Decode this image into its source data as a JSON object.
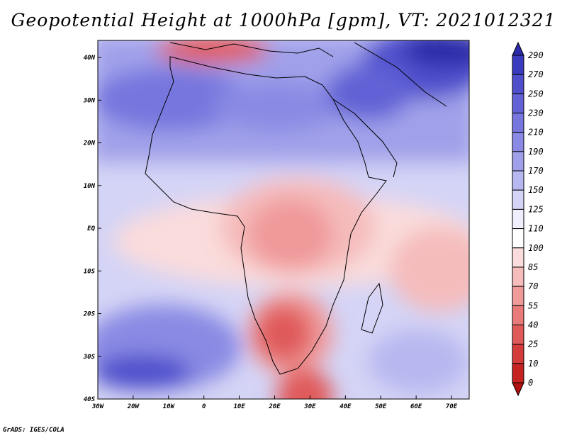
{
  "title": "Geopotential Height at 1000hPa [gpm], VT: 2021012321",
  "credit": "GrADS: IGES/COLA",
  "map": {
    "lat_labels": [
      "40N",
      "30N",
      "20N",
      "10N",
      "EQ",
      "10S",
      "20S",
      "30S",
      "40S"
    ],
    "lon_labels": [
      "30W",
      "20W",
      "10W",
      "0",
      "10E",
      "20E",
      "30E",
      "40E",
      "50E",
      "60E",
      "70E"
    ],
    "lon_range": [
      -30,
      75
    ],
    "lat_range": [
      -40,
      44
    ]
  },
  "colorbar": {
    "levels": [
      "290",
      "270",
      "250",
      "230",
      "210",
      "190",
      "170",
      "150",
      "125",
      "110",
      "100",
      "85",
      "70",
      "55",
      "40",
      "25",
      "10",
      "0"
    ],
    "colors": [
      "#2a2aa8",
      "#3b3bbd",
      "#4f4fcc",
      "#6262d6",
      "#7676de",
      "#8a8ae4",
      "#a0a0ea",
      "#b8b8f0",
      "#d4d4f6",
      "#eeeefc",
      "#ffffff",
      "#fadcdc",
      "#f5bcbc",
      "#f09a9a",
      "#e97a7a",
      "#e05a5a",
      "#d43c3c",
      "#c62222",
      "#b01010"
    ]
  }
}
